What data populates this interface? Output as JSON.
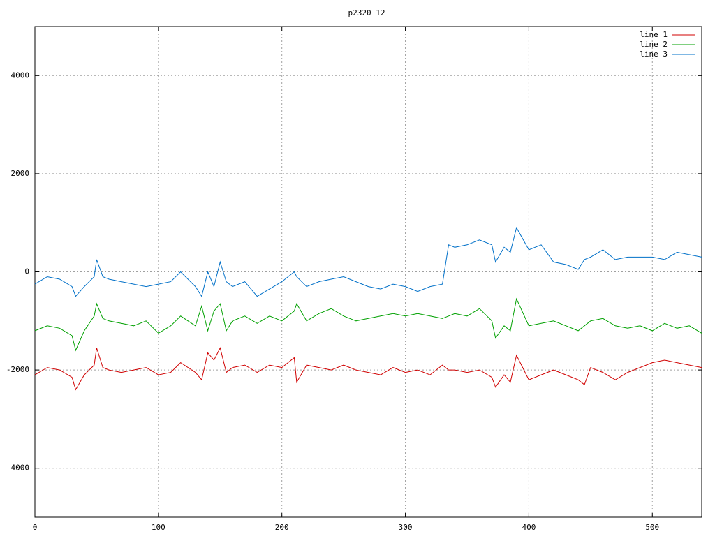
{
  "chart_data": {
    "type": "line",
    "title": "p2320_12",
    "x": [
      0,
      10,
      20,
      30,
      33,
      40,
      48,
      50,
      55,
      60,
      70,
      80,
      90,
      100,
      110,
      118,
      130,
      135,
      140,
      145,
      150,
      155,
      160,
      170,
      180,
      190,
      200,
      210,
      212,
      220,
      230,
      240,
      250,
      260,
      270,
      280,
      290,
      300,
      310,
      320,
      330,
      335,
      340,
      350,
      360,
      370,
      373,
      380,
      385,
      390,
      400,
      410,
      420,
      430,
      440,
      445,
      450,
      460,
      470,
      480,
      490,
      500,
      510,
      520,
      530,
      540
    ],
    "series": [
      {
        "name": "line 1",
        "color": "#d00000",
        "values": [
          -2100,
          -1950,
          -2000,
          -2150,
          -2400,
          -2100,
          -1900,
          -1550,
          -1950,
          -2000,
          -2050,
          -2000,
          -1950,
          -2100,
          -2050,
          -1850,
          -2050,
          -2200,
          -1650,
          -1800,
          -1550,
          -2050,
          -1950,
          -1900,
          -2050,
          -1900,
          -1950,
          -1750,
          -2250,
          -1900,
          -1950,
          -2000,
          -1900,
          -2000,
          -2050,
          -2100,
          -1950,
          -2050,
          -2000,
          -2100,
          -1900,
          -2000,
          -2000,
          -2050,
          -2000,
          -2150,
          -2350,
          -2100,
          -2250,
          -1700,
          -2200,
          -2100,
          -2000,
          -2100,
          -2200,
          -2300,
          -1950,
          -2050,
          -2200,
          -2050,
          -1950,
          -1850,
          -1800,
          -1850,
          -1900,
          -1950
        ]
      },
      {
        "name": "line 2",
        "color": "#00a000",
        "values": [
          -1200,
          -1100,
          -1150,
          -1300,
          -1600,
          -1200,
          -900,
          -650,
          -950,
          -1000,
          -1050,
          -1100,
          -1000,
          -1250,
          -1100,
          -900,
          -1100,
          -700,
          -1200,
          -800,
          -650,
          -1200,
          -1000,
          -900,
          -1050,
          -900,
          -1000,
          -800,
          -650,
          -1000,
          -850,
          -750,
          -900,
          -1000,
          -950,
          -900,
          -850,
          -900,
          -850,
          -900,
          -950,
          -900,
          -850,
          -900,
          -750,
          -1000,
          -1350,
          -1100,
          -1200,
          -550,
          -1100,
          -1050,
          -1000,
          -1100,
          -1200,
          -1100,
          -1000,
          -950,
          -1100,
          -1150,
          -1100,
          -1200,
          -1050,
          -1150,
          -1100,
          -1250
        ]
      },
      {
        "name": "line 3",
        "color": "#0070c8",
        "values": [
          -250,
          -100,
          -150,
          -300,
          -500,
          -300,
          -100,
          250,
          -100,
          -150,
          -200,
          -250,
          -300,
          -250,
          -200,
          0,
          -300,
          -500,
          0,
          -300,
          200,
          -200,
          -300,
          -200,
          -500,
          -350,
          -200,
          0,
          -100,
          -300,
          -200,
          -150,
          -100,
          -200,
          -300,
          -350,
          -250,
          -300,
          -400,
          -300,
          -250,
          550,
          500,
          550,
          650,
          550,
          200,
          500,
          400,
          900,
          450,
          550,
          200,
          150,
          50,
          250,
          300,
          450,
          250,
          300,
          300,
          300,
          250,
          400,
          350,
          300
        ]
      }
    ],
    "xlim": [
      0,
      540
    ],
    "xticks": [
      0,
      100,
      200,
      300,
      400,
      500
    ],
    "ylim": [
      -5000,
      5000
    ],
    "yticks": [
      -4000,
      -2000,
      0,
      2000,
      4000
    ],
    "grid": true,
    "legend": "top-right"
  }
}
